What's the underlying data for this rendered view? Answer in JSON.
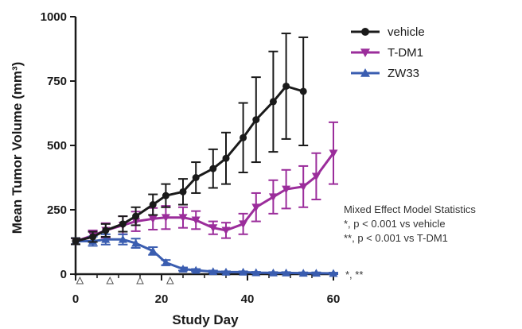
{
  "chart_data": {
    "type": "line",
    "xlabel": "Study Day",
    "ylabel": "Mean Tumor Volume (mm³)",
    "xlim": [
      0,
      60
    ],
    "ylim": [
      0,
      1000
    ],
    "xticks": [
      0,
      20,
      40,
      60
    ],
    "yticks": [
      0,
      250,
      500,
      750,
      1000
    ],
    "x_tick_labels": [
      "0",
      "20",
      "40",
      "60"
    ],
    "y_tick_labels": [
      "0",
      "250",
      "500",
      "750",
      "1000"
    ],
    "grid": false,
    "legend_position": "top-right",
    "dosing_days": [
      1,
      8,
      15,
      22
    ],
    "series": [
      {
        "name": "vehicle",
        "color": "#1a1a1a",
        "marker": "circle",
        "x": [
          0,
          4,
          7,
          11,
          14,
          18,
          21,
          25,
          28,
          32,
          35,
          39,
          42,
          46,
          49,
          53
        ],
        "y": [
          128,
          145,
          170,
          195,
          225,
          270,
          305,
          320,
          375,
          410,
          450,
          530,
          600,
          670,
          730,
          710
        ],
        "yerr": [
          12,
          20,
          25,
          30,
          35,
          40,
          45,
          50,
          60,
          75,
          100,
          135,
          165,
          195,
          205,
          210
        ]
      },
      {
        "name": "T-DM1",
        "color": "#9b2d9b",
        "marker": "triangle-down",
        "x": [
          0,
          4,
          7,
          11,
          14,
          18,
          21,
          25,
          28,
          32,
          35,
          39,
          42,
          46,
          49,
          53,
          56,
          60
        ],
        "y": [
          128,
          150,
          170,
          190,
          205,
          215,
          220,
          220,
          210,
          180,
          170,
          195,
          260,
          300,
          330,
          340,
          380,
          470
        ],
        "yerr": [
          12,
          20,
          28,
          35,
          38,
          42,
          45,
          40,
          35,
          25,
          30,
          40,
          55,
          65,
          75,
          80,
          90,
          120
        ]
      },
      {
        "name": "ZW33",
        "color": "#3a5db0",
        "marker": "triangle-up",
        "x": [
          0,
          4,
          7,
          11,
          14,
          18,
          21,
          25,
          28,
          32,
          35,
          39,
          42,
          46,
          49,
          53,
          56,
          60
        ],
        "y": [
          128,
          128,
          135,
          135,
          120,
          90,
          45,
          20,
          15,
          10,
          8,
          8,
          6,
          5,
          5,
          4,
          4,
          3
        ],
        "yerr": [
          12,
          18,
          20,
          20,
          18,
          15,
          10,
          6,
          5,
          4,
          3,
          3,
          3,
          3,
          3,
          3,
          3,
          3
        ]
      }
    ]
  },
  "stats_box": {
    "title": "Mixed Effect Model Statistics",
    "line1": "*, p < 0.001 vs vehicle",
    "line2": "**, p < 0.001 vs T-DM1"
  },
  "zw33_annotation": "*, **"
}
